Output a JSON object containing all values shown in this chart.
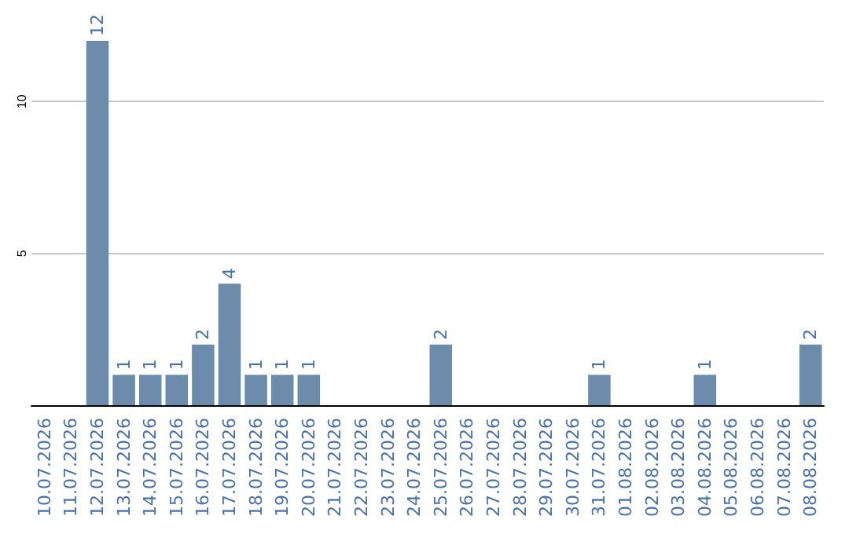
{
  "chart_data": {
    "type": "bar",
    "categories": [
      "10.07.2026",
      "11.07.2026",
      "12.07.2026",
      "13.07.2026",
      "14.07.2026",
      "15.07.2026",
      "16.07.2026",
      "17.07.2026",
      "18.07.2026",
      "19.07.2026",
      "20.07.2026",
      "21.07.2026",
      "22.07.2026",
      "23.07.2026",
      "24.07.2026",
      "25.07.2026",
      "26.07.2026",
      "27.07.2026",
      "28.07.2026",
      "29.07.2026",
      "30.07.2026",
      "31.07.2026",
      "01.08.2026",
      "02.08.2026",
      "03.08.2026",
      "04.08.2026",
      "05.08.2026",
      "06.08.2026",
      "07.08.2026",
      "08.08.2026"
    ],
    "values": [
      0,
      0,
      12,
      1,
      1,
      1,
      2,
      4,
      1,
      1,
      1,
      0,
      0,
      0,
      0,
      2,
      0,
      0,
      0,
      0,
      0,
      1,
      0,
      0,
      0,
      1,
      0,
      0,
      0,
      2
    ],
    "value_labels": [
      null,
      null,
      "12",
      "1",
      "1",
      "1",
      "2",
      "4",
      "1",
      "1",
      "1",
      null,
      null,
      null,
      null,
      "2",
      null,
      null,
      null,
      null,
      null,
      "1",
      null,
      null,
      null,
      "1",
      null,
      null,
      null,
      "2"
    ],
    "color": "#6d8cab",
    "ylim": [
      0,
      12
    ],
    "yticks": [
      5,
      10
    ],
    "grid": "y"
  }
}
